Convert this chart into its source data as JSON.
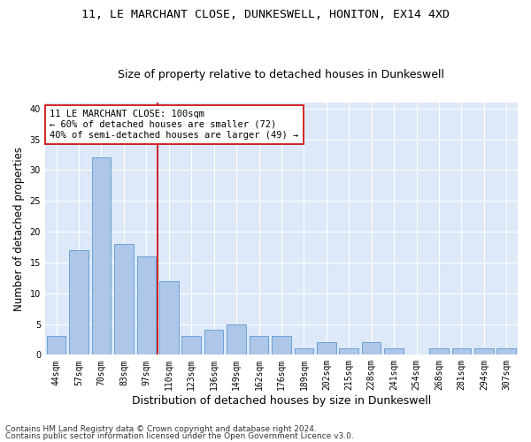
{
  "title": "11, LE MARCHANT CLOSE, DUNKESWELL, HONITON, EX14 4XD",
  "subtitle": "Size of property relative to detached houses in Dunkeswell",
  "xlabel": "Distribution of detached houses by size in Dunkeswell",
  "ylabel": "Number of detached properties",
  "categories": [
    "44sqm",
    "57sqm",
    "70sqm",
    "83sqm",
    "97sqm",
    "110sqm",
    "123sqm",
    "136sqm",
    "149sqm",
    "162sqm",
    "176sqm",
    "189sqm",
    "202sqm",
    "215sqm",
    "228sqm",
    "241sqm",
    "254sqm",
    "268sqm",
    "281sqm",
    "294sqm",
    "307sqm"
  ],
  "values": [
    3,
    17,
    32,
    18,
    16,
    12,
    3,
    4,
    5,
    3,
    3,
    1,
    2,
    1,
    2,
    1,
    0,
    1,
    1,
    1,
    1
  ],
  "bar_color": "#aec6e8",
  "bar_edge_color": "#5b9bd5",
  "vline_x": 4.5,
  "vline_color": "#cc0000",
  "annotation_line1": "11 LE MARCHANT CLOSE: 100sqm",
  "annotation_line2": "← 60% of detached houses are smaller (72)",
  "annotation_line3": "40% of semi-detached houses are larger (49) →",
  "annotation_box_color": "#ffffff",
  "annotation_box_edge": "#cc0000",
  "ylim": [
    0,
    41
  ],
  "yticks": [
    0,
    5,
    10,
    15,
    20,
    25,
    30,
    35,
    40
  ],
  "footnote1": "Contains HM Land Registry data © Crown copyright and database right 2024.",
  "footnote2": "Contains public sector information licensed under the Open Government Licence v3.0.",
  "plot_bg_color": "#dde8f8",
  "fig_bg_color": "#ffffff",
  "grid_color": "#ffffff",
  "title_fontsize": 9.5,
  "subtitle_fontsize": 9,
  "xlabel_fontsize": 9,
  "ylabel_fontsize": 8.5,
  "tick_fontsize": 7,
  "annotation_fontsize": 7.5,
  "footnote_fontsize": 6.5
}
